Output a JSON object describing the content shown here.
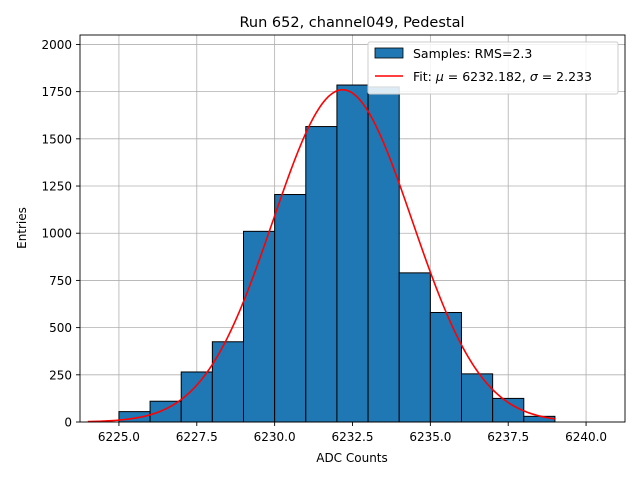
{
  "chart_data": {
    "type": "bar",
    "title": "Run 652, channel049, Pedestal",
    "xlabel": "ADC Counts",
    "ylabel": "Entries",
    "xlim": [
      6223.75,
      6241.25
    ],
    "ylim": [
      0,
      2050
    ],
    "grid": true,
    "legend_position": "top-right",
    "x_ticks": [
      6225.0,
      6227.5,
      6230.0,
      6232.5,
      6235.0,
      6237.5,
      6240.0
    ],
    "x_tick_labels": [
      "6225.0",
      "6227.5",
      "6230.0",
      "6232.5",
      "6235.0",
      "6237.5",
      "6240.0"
    ],
    "y_ticks": [
      0,
      250,
      500,
      750,
      1000,
      1250,
      1500,
      1750,
      2000
    ],
    "y_tick_labels": [
      "0",
      "250",
      "500",
      "750",
      "1000",
      "1250",
      "1500",
      "1750",
      "2000"
    ],
    "histogram": {
      "name": "Samples: RMS=2.3",
      "color": "#1f77b4",
      "edge_color": "#000000",
      "bin_edges": [
        6225,
        6226,
        6227,
        6228,
        6229,
        6230,
        6231,
        6232,
        6233,
        6234,
        6235,
        6236,
        6237,
        6238,
        6239
      ],
      "values": [
        55,
        110,
        265,
        425,
        1010,
        1205,
        1565,
        1785,
        1775,
        790,
        580,
        255,
        125,
        30
      ]
    },
    "fit": {
      "name_prefix": "Fit: ",
      "mu_symbol": "μ",
      "mu_value": " = 6232.182, ",
      "sigma_symbol": "σ",
      "sigma_value": " = 2.233",
      "color": "#ff0000",
      "type": "gaussian",
      "mu": 6232.182,
      "sigma": 2.233,
      "amplitude": 1760,
      "x_range": [
        6224,
        6239
      ]
    }
  }
}
